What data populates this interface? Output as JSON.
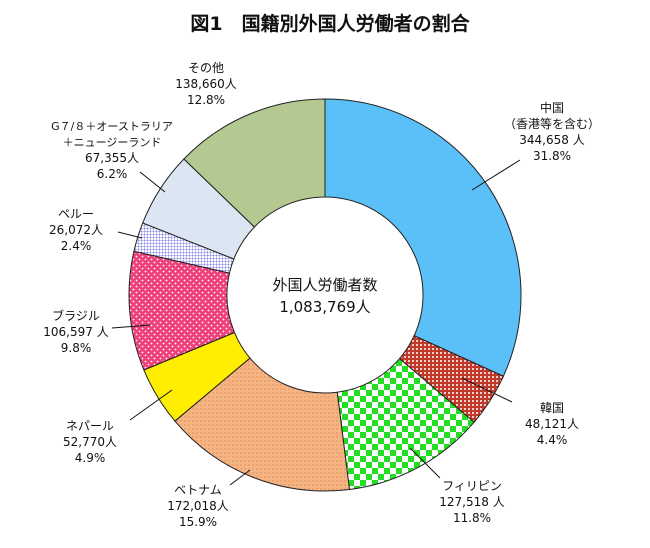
{
  "chart_data": {
    "type": "pie",
    "variant": "donut",
    "title": "図1　国籍別外国人労働者の割合",
    "center_label": {
      "line1": "外国人労働者数",
      "line2": "1,083,769人"
    },
    "slices": [
      {
        "lines": [
          "中国",
          "（香港等を含む）",
          "344,658 人",
          "31.8%"
        ],
        "value": 344658,
        "percent": 31.8,
        "color": "#5bc0f8",
        "pattern": "solid"
      },
      {
        "lines": [
          "韓国",
          "48,121人",
          "4.4%"
        ],
        "value": 48121,
        "percent": 4.4,
        "color": "#c0392b",
        "pattern": "dots"
      },
      {
        "lines": [
          "フィリピン",
          "127,518 人",
          "11.8%"
        ],
        "value": 127518,
        "percent": 11.8,
        "color": "#22dd22",
        "pattern": "checker"
      },
      {
        "lines": [
          "ベトナム",
          "172,018人",
          "15.9%"
        ],
        "value": 172018,
        "percent": 15.9,
        "color": "#f6b483",
        "pattern": "dots"
      },
      {
        "lines": [
          "ネパール",
          "52,770人",
          "4.9%"
        ],
        "value": 52770,
        "percent": 4.9,
        "color": "#ffee00",
        "pattern": "solid"
      },
      {
        "lines": [
          "ブラジル",
          "106,597 人",
          "9.8%"
        ],
        "value": 106597,
        "percent": 9.8,
        "color": "#f0407a",
        "pattern": "dots"
      },
      {
        "lines": [
          "ペルー",
          "26,072人",
          "2.4%"
        ],
        "value": 26072,
        "percent": 2.4,
        "color": "#7f7fff",
        "pattern": "grid"
      },
      {
        "lines": [
          "G７/８＋オーストラリア",
          "＋ニュージーランド",
          "67,355人",
          "6.2%"
        ],
        "value": 67355,
        "percent": 6.2,
        "color": "#dce6f2",
        "pattern": "solid"
      },
      {
        "lines": [
          "その他",
          "138,660人",
          "12.8%"
        ],
        "value": 138660,
        "percent": 12.8,
        "color": "#b3c991",
        "pattern": "solid"
      }
    ]
  }
}
